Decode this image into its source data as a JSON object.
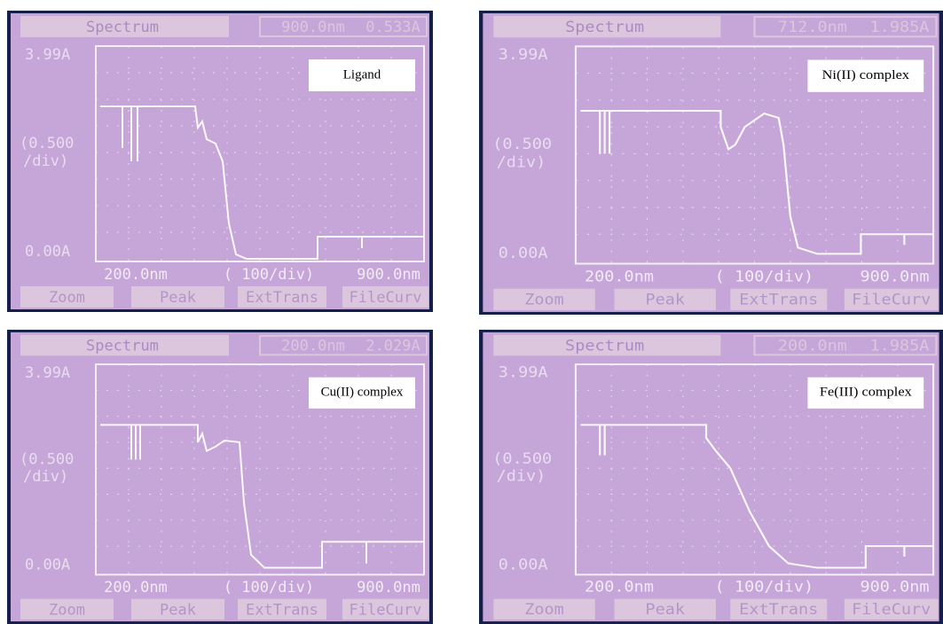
{
  "panels": [
    {
      "label": "Ligand",
      "header": "Spectrum",
      "wavelength": "900.0nm",
      "absorbance": "0.533A",
      "y_max": "3.99A",
      "y_scale": [
        "(0.500",
        "/div)"
      ],
      "y_min": "0.00A",
      "x_min": "200.0nm",
      "x_scale": "( 100/div)",
      "x_max": "900.0nm",
      "buttons": [
        "Zoom",
        "Peak",
        "ExtTrans",
        "FileCurv"
      ]
    },
    {
      "label": "Ni(II) complex",
      "header": "Spectrum",
      "wavelength": "712.0nm",
      "absorbance": "1.985A",
      "y_max": "3.99A",
      "y_scale": [
        "(0.500",
        "/div)"
      ],
      "y_min": "0.00A",
      "x_min": "200.0nm",
      "x_scale": "( 100/div)",
      "x_max": "900.0nm",
      "buttons": [
        "Zoom",
        "Peak",
        "ExtTrans",
        "FileCurv"
      ]
    },
    {
      "label": "Cu(II) complex",
      "header": "Spectrum",
      "wavelength": "200.0nm",
      "absorbance": "2.029A",
      "y_max": "3.99A",
      "y_scale": [
        "(0.500",
        "/div)"
      ],
      "y_min": "0.00A",
      "x_min": "200.0nm",
      "x_scale": "( 100/div)",
      "x_max": "900.0nm",
      "buttons": [
        "Zoom",
        "Peak",
        "ExtTrans",
        "FileCurv"
      ]
    },
    {
      "label": "Fe(III) complex",
      "header": "Spectrum",
      "wavelength": "200.0nm",
      "absorbance": "1.985A",
      "y_max": "3.99A",
      "y_scale": [
        "(0.500",
        "/div)"
      ],
      "y_min": "0.00A",
      "x_min": "200.0nm",
      "x_scale": "( 100/div)",
      "x_max": "900.0nm",
      "buttons": [
        "Zoom",
        "Peak",
        "ExtTrans",
        "FileCurv"
      ]
    }
  ]
}
